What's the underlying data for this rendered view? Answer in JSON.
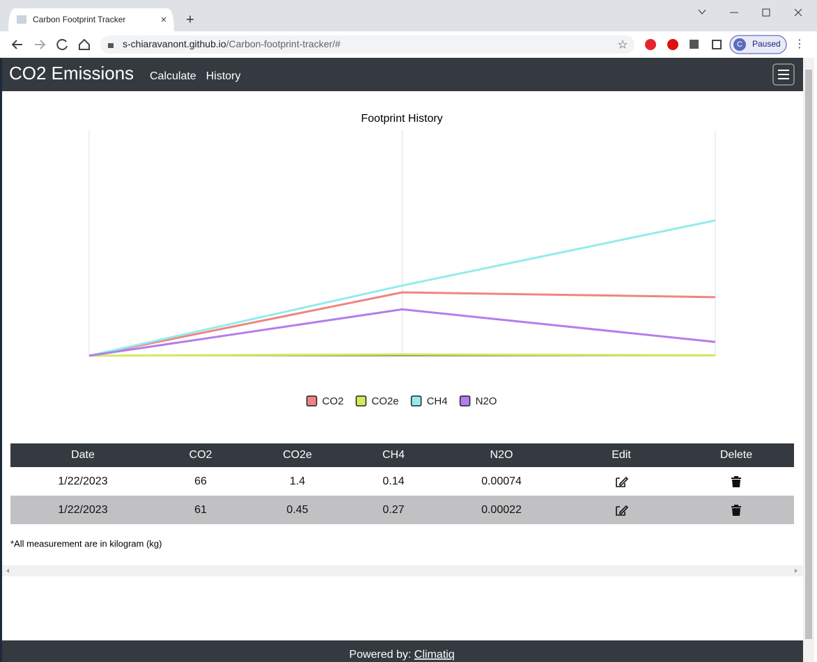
{
  "browser": {
    "tab_title": "Carbon Footprint Tracker",
    "url_host": "s-chiaravanont.github.io",
    "url_path": "/Carbon-footprint-tracker/#",
    "profile_initial": "C",
    "profile_status": "Paused"
  },
  "navbar": {
    "brand": "CO2 Emissions",
    "links": [
      "Calculate",
      "History"
    ]
  },
  "chart_data": {
    "type": "line",
    "title": "Footprint History",
    "categories": [
      null,
      null,
      null
    ],
    "legend": "bottom",
    "grid": true,
    "series": [
      {
        "name": "CO2",
        "color": "#f08482",
        "values": [
          0,
          66,
          61
        ],
        "ylim": [
          0,
          235
        ]
      },
      {
        "name": "CO2e",
        "color": "#d2ea5c",
        "values": [
          0,
          1.4,
          0.45
        ],
        "ylim": [
          0,
          235
        ]
      },
      {
        "name": "CH4",
        "color": "#93ecec",
        "values": [
          0,
          0.14,
          0.27
        ],
        "ylim": [
          0,
          0.45
        ]
      },
      {
        "name": "N2O",
        "color": "#b47ded",
        "values": [
          0,
          0.00074,
          0.00022
        ],
        "ylim": [
          0,
          0.0036
        ]
      }
    ]
  },
  "table": {
    "headers": [
      "Date",
      "CO2",
      "CO2e",
      "CH4",
      "N2O",
      "Edit",
      "Delete"
    ],
    "rows": [
      [
        "1/22/2023",
        "66",
        "1.4",
        "0.14",
        "0.00074"
      ],
      [
        "1/22/2023",
        "61",
        "0.45",
        "0.27",
        "0.00022"
      ]
    ]
  },
  "note": "*All measurement are in kilogram (kg)",
  "footer": {
    "label": "Powered by:",
    "link": "Climatiq"
  }
}
